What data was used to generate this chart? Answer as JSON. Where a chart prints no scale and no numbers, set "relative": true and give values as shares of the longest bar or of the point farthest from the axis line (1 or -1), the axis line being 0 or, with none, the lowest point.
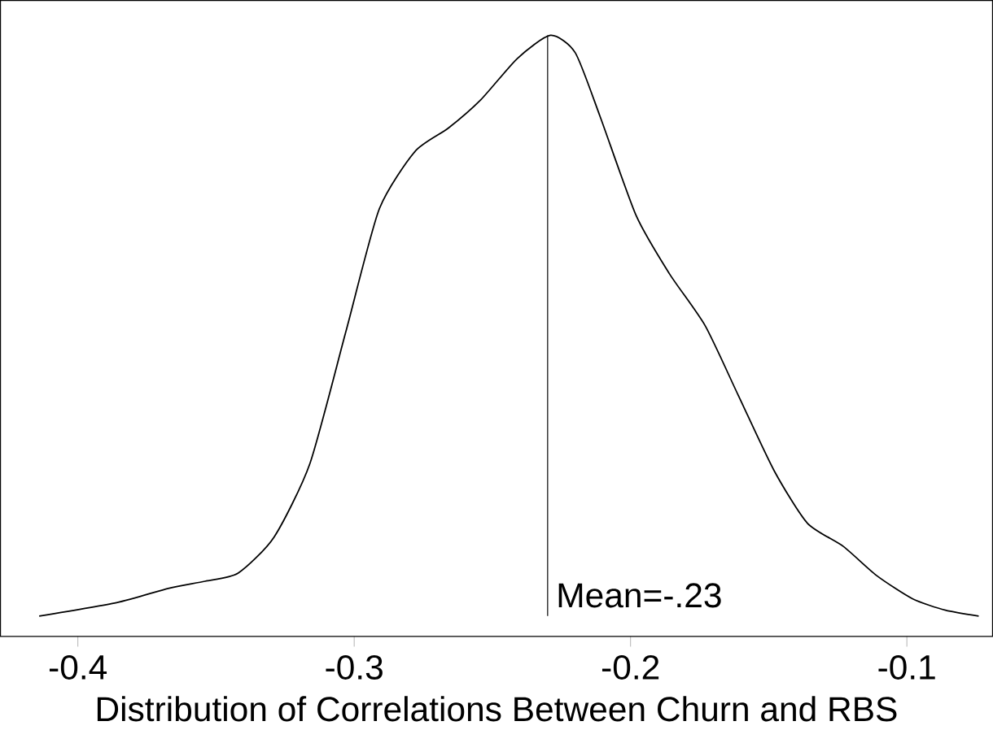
{
  "chart_data": {
    "type": "line",
    "relative": true,
    "xlabel": "Distribution of Correlations Between Churn and RBS",
    "x": [
      -0.414,
      -0.386,
      -0.367,
      -0.354,
      -0.342,
      -0.329,
      -0.316,
      -0.303,
      -0.291,
      -0.278,
      -0.266,
      -0.254,
      -0.241,
      -0.229,
      -0.22,
      -0.211,
      -0.198,
      -0.186,
      -0.173,
      -0.161,
      -0.148,
      -0.136,
      -0.123,
      -0.111,
      -0.098,
      -0.086,
      -0.074
    ],
    "series": [
      {
        "color": "#000000",
        "values": [
          0,
          0.023,
          0.048,
          0.06,
          0.074,
          0.136,
          0.263,
          0.49,
          0.7,
          0.8,
          0.84,
          0.89,
          0.96,
          1.0,
          0.97,
          0.86,
          0.69,
          0.59,
          0.5,
          0.38,
          0.25,
          0.16,
          0.12,
          0.07,
          0.03,
          0.01,
          0
        ]
      }
    ],
    "xlim": [
      -0.428,
      -0.069
    ],
    "xticks": [
      {
        "value": -0.4,
        "label": "-0.4"
      },
      {
        "value": -0.3,
        "label": "-0.3"
      },
      {
        "value": -0.2,
        "label": "-0.2"
      },
      {
        "value": -0.1,
        "label": "-0.1"
      }
    ],
    "ref_lines": [
      {
        "axis": "x",
        "value": -0.23,
        "label": "Mean=-.23",
        "color": "#000000"
      }
    ],
    "grid": false,
    "marker": "none",
    "line_style": "solid"
  }
}
